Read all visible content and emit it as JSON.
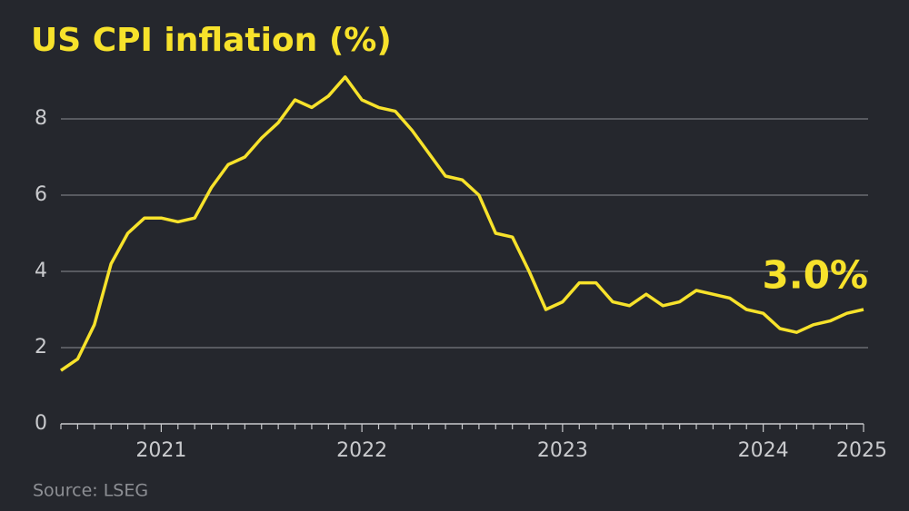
{
  "chart_data": {
    "type": "line",
    "title": "US CPI inflation (%)",
    "source": "Source: LSEG",
    "annotation": "3.0%",
    "categories": [
      null,
      null,
      null,
      null,
      null,
      null,
      "2021",
      null,
      null,
      null,
      null,
      null,
      null,
      null,
      null,
      null,
      null,
      null,
      "2022",
      null,
      null,
      null,
      null,
      null,
      null,
      null,
      null,
      null,
      null,
      null,
      "2023",
      null,
      null,
      null,
      null,
      null,
      null,
      null,
      null,
      null,
      null,
      null,
      "2024",
      null,
      null,
      null,
      null,
      null,
      "2025"
    ],
    "series": [
      {
        "name": "US CPI inflation",
        "color": "#f7e22b",
        "values": [
          1.4,
          1.7,
          2.6,
          4.2,
          5.0,
          5.4,
          5.4,
          5.3,
          5.4,
          6.2,
          6.8,
          7.0,
          7.5,
          7.9,
          8.5,
          8.3,
          8.6,
          9.1,
          8.5,
          8.3,
          8.2,
          7.7,
          7.1,
          6.5,
          6.4,
          6.0,
          5.0,
          4.9,
          4.0,
          3.0,
          3.2,
          3.7,
          3.7,
          3.2,
          3.1,
          3.4,
          3.1,
          3.2,
          3.5,
          3.4,
          3.3,
          3.0,
          2.9,
          2.5,
          2.4,
          2.6,
          2.7,
          2.9,
          3.0
        ]
      }
    ],
    "ylim": [
      0,
      9.1
    ],
    "yticks": [
      0,
      2,
      4,
      6,
      8
    ],
    "grid": true
  }
}
